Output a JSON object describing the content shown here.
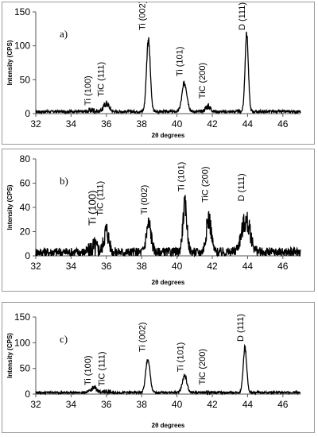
{
  "chart_data": [
    {
      "type": "line",
      "title": "",
      "label": "a)",
      "xlabel": "2θ degrees",
      "ylabel": "Intensity (CPS)",
      "xlim": [
        32,
        47
      ],
      "ylim": [
        0,
        150
      ],
      "xticks": [
        32,
        34,
        36,
        38,
        40,
        42,
        44,
        46
      ],
      "yticks": [
        0,
        50,
        100,
        150
      ],
      "baseline": 3,
      "noise": 2,
      "peaks": [
        {
          "x": 35.2,
          "height": 2,
          "width": 0.25
        },
        {
          "x": 36.0,
          "height": 12,
          "width": 0.22
        },
        {
          "x": 38.38,
          "height": 107,
          "width": 0.15
        },
        {
          "x": 40.43,
          "height": 42,
          "width": 0.2
        },
        {
          "x": 41.75,
          "height": 8,
          "width": 0.2
        },
        {
          "x": 43.95,
          "height": 115,
          "width": 0.13
        }
      ],
      "annotations": [
        {
          "text": "Ti (100)",
          "x": 35.1,
          "y": 12
        },
        {
          "text": "TiC (111)",
          "x": 35.85,
          "y": 25
        },
        {
          "text": "Ti (002)",
          "x": 38.2,
          "y": 123
        },
        {
          "text": "Ti (101)",
          "x": 40.3,
          "y": 55
        },
        {
          "text": "TiC (200)",
          "x": 41.6,
          "y": 22
        },
        {
          "text": "D (111)",
          "x": 43.85,
          "y": 123
        }
      ]
    },
    {
      "type": "line",
      "title": "",
      "label": "b)",
      "xlabel": "2θ degrees",
      "ylabel": "Intensity (CPS)",
      "xlim": [
        32,
        47
      ],
      "ylim": [
        0,
        80
      ],
      "xticks": [
        32,
        34,
        36,
        38,
        40,
        42,
        44,
        46
      ],
      "yticks": [
        0,
        20,
        40,
        60,
        80
      ],
      "baseline": 3,
      "noise": 4,
      "peaks": [
        {
          "x": 35.3,
          "height": 4,
          "width": 0.3
        },
        {
          "x": 36.0,
          "height": 18,
          "width": 0.2
        },
        {
          "x": 38.4,
          "height": 23,
          "width": 0.2
        },
        {
          "x": 40.45,
          "height": 38,
          "width": 0.17
        },
        {
          "x": 41.8,
          "height": 28,
          "width": 0.2
        },
        {
          "x": 43.9,
          "height": 26,
          "width": 0.35
        }
      ],
      "annotations": [
        {
          "text": "Ti (100)",
          "x": 35.4,
          "y": 25
        },
        {
          "text": "TiC (111)",
          "x": 35.8,
          "y": 33
        },
        {
          "text": "Ti (002)",
          "x": 38.3,
          "y": 34
        },
        {
          "text": "Ti (101)",
          "x": 40.4,
          "y": 53
        },
        {
          "text": "TiC (200)",
          "x": 41.75,
          "y": 44
        },
        {
          "text": "D (111)",
          "x": 43.8,
          "y": 45
        }
      ]
    },
    {
      "type": "line",
      "title": "",
      "label": "c)",
      "xlabel": "2θ degrees",
      "ylabel": "Intensity (CPS)",
      "xlim": [
        32,
        47
      ],
      "ylim": [
        0,
        150
      ],
      "xticks": [
        32,
        34,
        36,
        38,
        40,
        42,
        44,
        46
      ],
      "yticks": [
        0,
        50,
        100,
        150
      ],
      "baseline": 3,
      "noise": 2,
      "peaks": [
        {
          "x": 35.3,
          "height": 9,
          "width": 0.25
        },
        {
          "x": 36.0,
          "height": 2,
          "width": 0.2
        },
        {
          "x": 38.35,
          "height": 65,
          "width": 0.17
        },
        {
          "x": 40.43,
          "height": 33,
          "width": 0.18
        },
        {
          "x": 41.8,
          "height": 1,
          "width": 0.2
        },
        {
          "x": 43.85,
          "height": 88,
          "width": 0.14
        }
      ],
      "annotations": [
        {
          "text": "Ti (100)",
          "x": 35.1,
          "y": 17
        },
        {
          "text": "TiC (111)",
          "x": 35.9,
          "y": 15
        },
        {
          "text": "Ti (002)",
          "x": 38.2,
          "y": 82
        },
        {
          "text": "Ti (101)",
          "x": 40.35,
          "y": 43
        },
        {
          "text": "TiC (200)",
          "x": 41.6,
          "y": 18
        },
        {
          "text": "D (111)",
          "x": 43.75,
          "y": 102
        }
      ]
    }
  ]
}
